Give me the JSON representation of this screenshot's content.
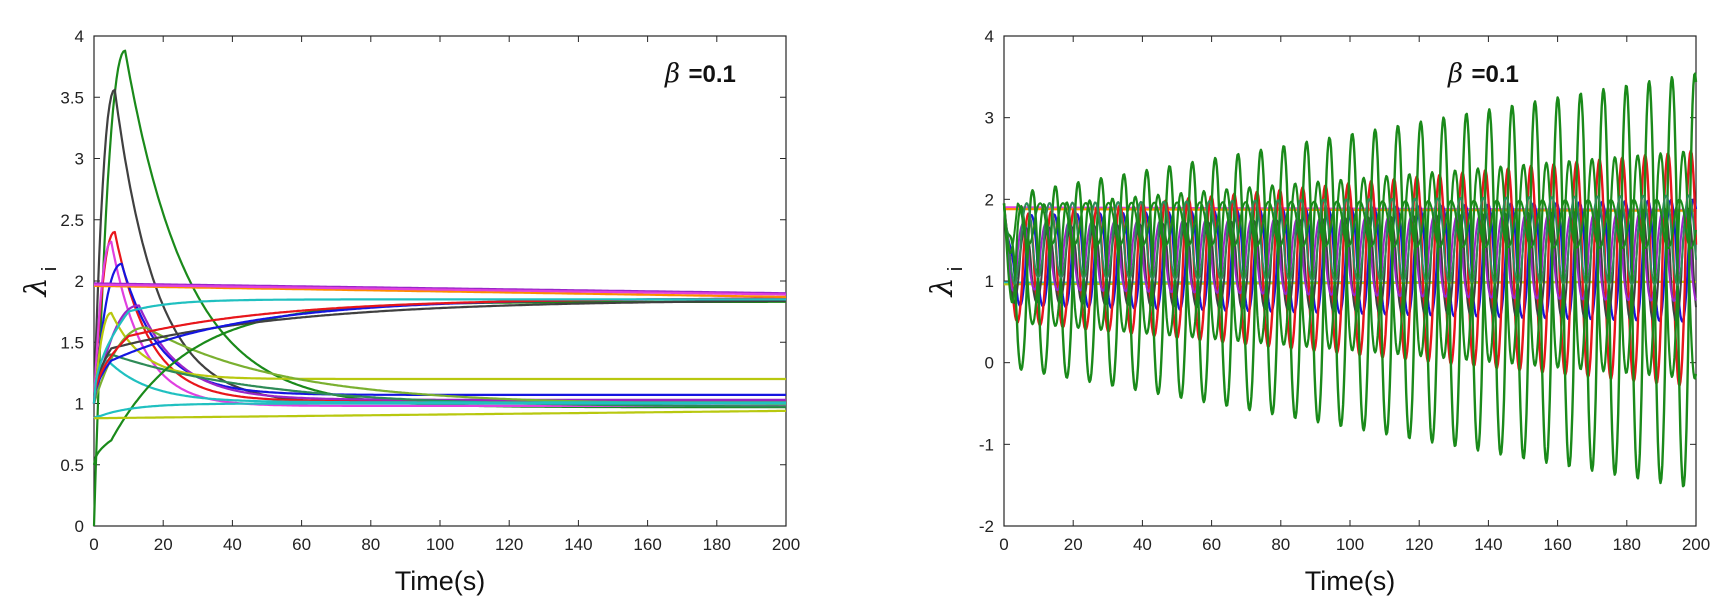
{
  "chart_data": [
    {
      "type": "line",
      "xlabel": "Time(s)",
      "ylabel": "λ",
      "ylabel_sub": "i",
      "xlim": [
        0,
        200
      ],
      "ylim": [
        0,
        4
      ],
      "xticks": [
        0,
        20,
        40,
        60,
        80,
        100,
        120,
        140,
        160,
        180,
        200
      ],
      "yticks": [
        0,
        0.5,
        1,
        1.5,
        2,
        2.5,
        3,
        3.5,
        4
      ],
      "grid": false,
      "annotation": {
        "symbol": "β",
        "text": "=0.1",
        "position": "top-right"
      },
      "series": [
        {
          "color": "#1a8a1a",
          "kind": "transient",
          "x0": 0,
          "y0": 0,
          "peak_t": 9,
          "peak_y": 3.88,
          "settle_y": 0.97,
          "tau": 18,
          "width": 2.2
        },
        {
          "color": "#404040",
          "kind": "transient",
          "x0": 0,
          "y0": 1.0,
          "peak_t": 6,
          "peak_y": 3.56,
          "settle_y": 1.0,
          "tau": 12,
          "width": 2.2
        },
        {
          "color": "#e8161b",
          "kind": "transient",
          "x0": 0,
          "y0": 1.0,
          "peak_t": 6,
          "peak_y": 2.4,
          "settle_y": 1.02,
          "tau": 10,
          "width": 2.2
        },
        {
          "color": "#e040e0",
          "kind": "transient",
          "x0": 0,
          "y0": 1.0,
          "peak_t": 5,
          "peak_y": 2.32,
          "settle_y": 0.98,
          "tau": 9,
          "width": 2.2
        },
        {
          "color": "#1515e0",
          "kind": "transient",
          "x0": 0,
          "y0": 1.0,
          "peak_t": 8,
          "peak_y": 2.14,
          "settle_y": 1.07,
          "tau": 11,
          "width": 2.2
        },
        {
          "color": "#9a25c8",
          "kind": "transient",
          "x0": 0,
          "y0": 1.0,
          "peak_t": 13,
          "peak_y": 1.8,
          "settle_y": 1.03,
          "tau": 12,
          "width": 2.2
        },
        {
          "color": "#b8c80f",
          "kind": "transient",
          "x0": 0,
          "y0": 1.0,
          "peak_t": 5,
          "peak_y": 1.74,
          "settle_y": 1.2,
          "tau": 9,
          "width": 2.2
        },
        {
          "color": "#7ab030",
          "kind": "transient",
          "x0": 0,
          "y0": 1.0,
          "peak_t": 15,
          "peak_y": 1.62,
          "settle_y": 0.99,
          "tau": 40,
          "width": 2.2
        },
        {
          "color": "#2e8b57",
          "kind": "transient",
          "x0": 0,
          "y0": 1.0,
          "peak_t": 5,
          "peak_y": 1.4,
          "settle_y": 0.97,
          "tau": 45,
          "width": 2.2
        },
        {
          "color": "#20c0c0",
          "kind": "transient",
          "x0": 0,
          "y0": 1.0,
          "peak_t": 4,
          "peak_y": 1.35,
          "settle_y": 1.01,
          "tau": 12,
          "width": 2.2
        },
        {
          "color": "#1a8a1a",
          "kind": "rise",
          "x0": 0,
          "y0": 0.5,
          "y1": 0.7,
          "t1": 5,
          "settle_y": 1.83,
          "tau": 22,
          "width": 2.2
        },
        {
          "color": "#404040",
          "kind": "rise",
          "x0": 0,
          "y0": 1.0,
          "y1": 1.45,
          "t1": 5,
          "settle_y": 1.85,
          "tau": 55,
          "width": 2.2
        },
        {
          "color": "#1515e0",
          "kind": "rise",
          "x0": 0,
          "y0": 1.0,
          "y1": 1.35,
          "t1": 5,
          "settle_y": 1.86,
          "tau": 40,
          "width": 2.2
        },
        {
          "color": "#e8161b",
          "kind": "rise",
          "x0": 0,
          "y0": 1.0,
          "y1": 1.55,
          "t1": 10,
          "settle_y": 1.86,
          "tau": 45,
          "width": 2.2
        },
        {
          "color": "#20c0c0",
          "kind": "rise",
          "x0": 0,
          "y0": 1.0,
          "y1": 1.75,
          "t1": 10,
          "settle_y": 1.85,
          "tau": 12,
          "width": 2.2
        },
        {
          "color": "#20c0c0",
          "kind": "rise",
          "x0": 0,
          "y0": 0.88,
          "y1": 0.9,
          "t1": 2,
          "settle_y": 1.0,
          "tau": 10,
          "width": 2.2
        },
        {
          "color": "#b8c80f",
          "kind": "flat",
          "y0": 0.88,
          "settle_y": 0.94,
          "width": 2.2
        },
        {
          "color": "#9a25c8",
          "kind": "flat",
          "y0": 1.98,
          "settle_y": 1.9,
          "width": 2.2
        },
        {
          "color": "#ff8c00",
          "kind": "flat",
          "y0": 1.96,
          "settle_y": 1.87,
          "width": 2.2
        },
        {
          "color": "#e040e0",
          "kind": "flat",
          "y0": 1.97,
          "settle_y": 1.89,
          "width": 2.2
        }
      ]
    },
    {
      "type": "line",
      "xlabel": "Time(s)",
      "ylabel": "λ",
      "ylabel_sub": "i",
      "xlim": [
        0,
        200
      ],
      "ylim": [
        -2,
        4
      ],
      "xticks": [
        0,
        20,
        40,
        60,
        80,
        100,
        120,
        140,
        160,
        180,
        200
      ],
      "yticks": [
        -2,
        -1,
        0,
        1,
        2,
        3,
        4
      ],
      "grid": false,
      "annotation": {
        "symbol": "β",
        "text": "=0.1",
        "position": "top-right"
      },
      "series": [
        {
          "color": "#e040e0",
          "kind": "flat",
          "y0": 1.9,
          "settle_y": 1.87,
          "width": 2.4
        },
        {
          "color": "#ff8c00",
          "kind": "flat",
          "y0": 1.88,
          "settle_y": 1.86,
          "width": 2.2
        },
        {
          "color": "#20c0c0",
          "kind": "flat",
          "y0": 0.98,
          "settle_y": 0.99,
          "width": 2.2
        },
        {
          "color": "#b8c80f",
          "kind": "flat",
          "y0": 0.96,
          "settle_y": 0.99,
          "width": 2.2
        },
        {
          "color": "#1515e0",
          "kind": "osc",
          "center": 1.25,
          "amp0": 0.55,
          "amp1": 0.75,
          "period": 6.6,
          "phase": 0.3,
          "width": 2.2
        },
        {
          "color": "#e8161b",
          "kind": "osc",
          "center": 1.15,
          "amp0": 0.65,
          "amp1": 1.45,
          "period": 6.6,
          "phase": 1.1,
          "width": 2.4
        },
        {
          "color": "#404040",
          "kind": "osc",
          "center": 1.2,
          "amp0": 0.45,
          "amp1": 0.7,
          "period": 6.6,
          "phase": 2.0,
          "width": 2.0
        },
        {
          "color": "#9a25c8",
          "kind": "osc",
          "center": 1.3,
          "amp0": 0.4,
          "amp1": 0.55,
          "period": 6.6,
          "phase": 2.6,
          "width": 2.0
        },
        {
          "color": "#1a8a1a",
          "kind": "osc",
          "center": 1.0,
          "amp0": 1.05,
          "amp1": 2.55,
          "period": 6.6,
          "phase": 0.0,
          "width": 2.4
        },
        {
          "color": "#1a8a1a",
          "kind": "osc",
          "center": 1.2,
          "amp0": 0.7,
          "amp1": 1.4,
          "period": 6.6,
          "phase": 3.14,
          "width": 2.2
        },
        {
          "color": "#2e8b57",
          "kind": "osc",
          "center": 1.5,
          "amp0": 0.45,
          "amp1": 0.55,
          "period": 6.6,
          "phase": 1.6,
          "width": 2.0
        },
        {
          "color": "#1a8a1a",
          "kind": "osc",
          "center": 1.7,
          "amp0": 0.25,
          "amp1": 0.3,
          "period": 6.6,
          "phase": 4.2,
          "width": 2.0
        }
      ]
    }
  ]
}
